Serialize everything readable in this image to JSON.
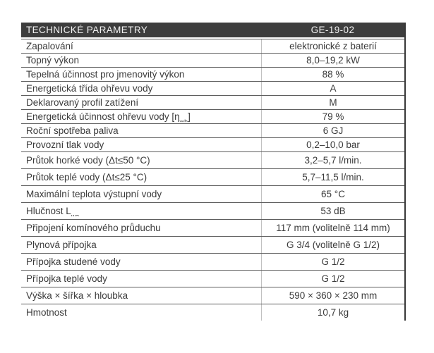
{
  "theme": {
    "header_bg": "#3d3d3d",
    "header_text": "#f2f2f2",
    "text": "#3b3b3b",
    "rule": "#5e5e5e",
    "rule_light": "#c0c0c0",
    "border_strong": "#383838",
    "page_bg": "#ffffff"
  },
  "table": {
    "header": {
      "title": "TECHNICKÉ PARAMETRY",
      "model": "GE-19-02"
    },
    "rows": [
      {
        "label": "Zapalování",
        "value": "elektronické z baterií"
      },
      {
        "label": "Topný výkon",
        "value": "8,0–19,2 kW"
      },
      {
        "label": "Tepelná účinnost pro jmenovitý výkon",
        "value": "88 %"
      },
      {
        "label": "Energetická třída ohřevu vody",
        "value": "A"
      },
      {
        "label": "Deklarovaný profil zatížení",
        "value": "M"
      },
      {
        "label_pre": "Energetická účinnost ohřevu vody [η",
        "label_sub": "wh",
        "label_post": "]",
        "value": "79 %"
      },
      {
        "label": "Roční spotřeba paliva",
        "value": "6 GJ"
      },
      {
        "label": "Provozní tlak vody",
        "value": "0,2–10,0 bar"
      },
      {
        "label": "Průtok horké vody (Δt≤50 °C)",
        "value": "3,2–5,7 l/min."
      },
      {
        "label": "Průtok teplé vody (Δt≤25 °C)",
        "value": "5,7–11,5 l/min."
      },
      {
        "label": "Maximální teplota výstupní vody",
        "value": "65 °C"
      },
      {
        "label_pre": "Hlučnost L",
        "label_sub": "wa",
        "label_post": "",
        "value": "53 dB"
      },
      {
        "label": "Připojení komínového průduchu",
        "value": "117 mm (volitelně 114 mm)"
      },
      {
        "label": "Plynová přípojka",
        "value": "G 3/4 (volitelně G 1/2)"
      },
      {
        "label": "Přípojka studené vody",
        "value": "G 1/2"
      },
      {
        "label": "Přípojka teplé vody",
        "value": "G 1/2"
      },
      {
        "label": "Výška × šířka × hloubka",
        "value": "590 × 360 × 230 mm"
      },
      {
        "label": "Hmotnost",
        "value": "10,7 kg"
      }
    ]
  }
}
